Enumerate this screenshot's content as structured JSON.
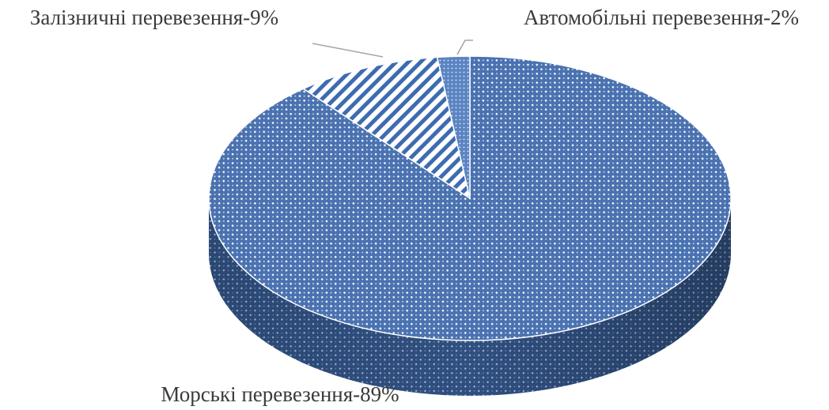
{
  "chart_data": {
    "type": "pie",
    "title": "",
    "three_d": true,
    "legend": "none",
    "slices": [
      {
        "label": "Морські перевезення-89%",
        "value": 89,
        "pattern": "dotted-grid",
        "color": "#4a72b0"
      },
      {
        "label": "Залізничні перевезення-9%",
        "value": 9,
        "pattern": "diagonal-stripes",
        "color": "#3e6bb0"
      },
      {
        "label": "Автомобільні перевезення-2%",
        "value": 2,
        "pattern": "fine-dots",
        "color": "#5b84c2"
      }
    ]
  }
}
